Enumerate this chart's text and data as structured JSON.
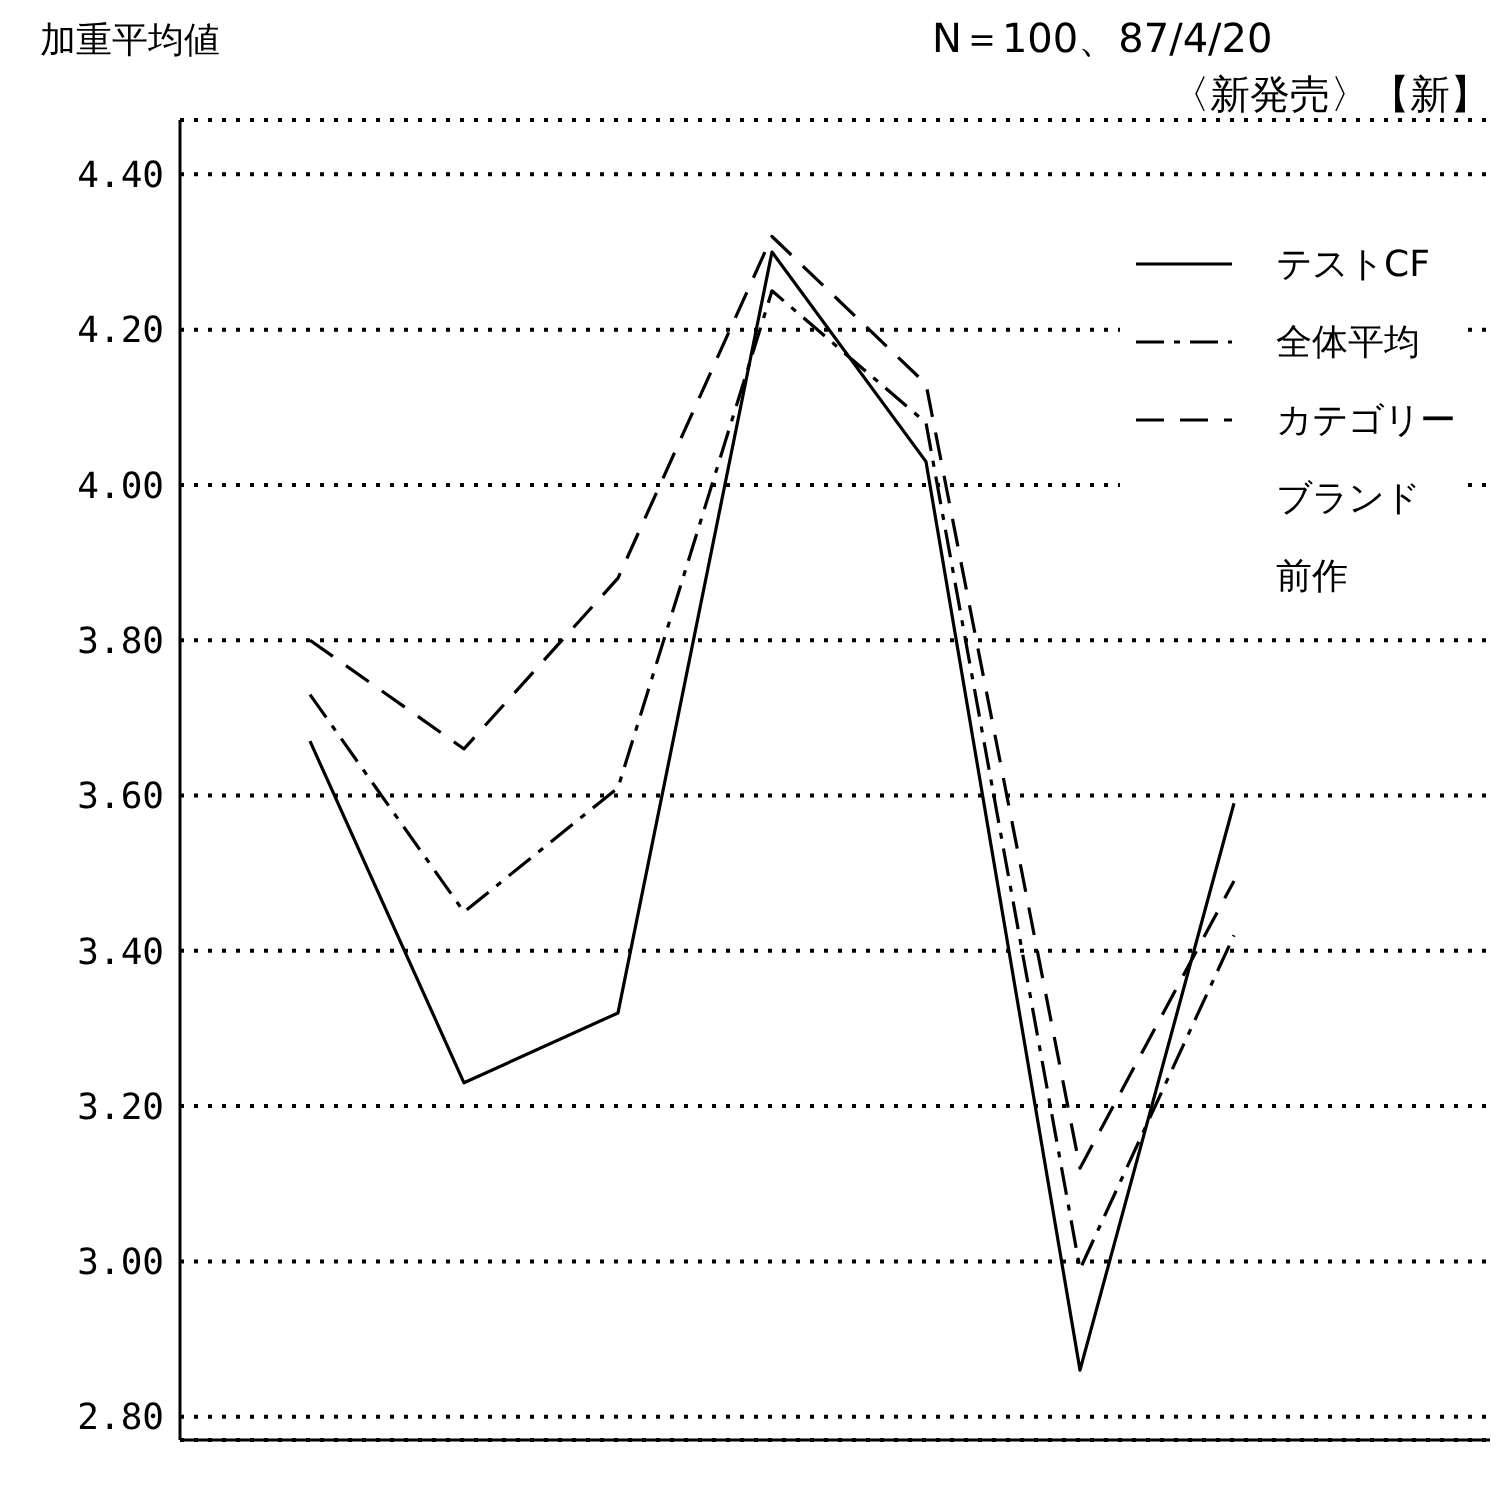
{
  "chart_data": {
    "type": "line",
    "ylabel": "加重平均値",
    "annotations": [
      "N＝100、87/4/20",
      "〈新発売〉【新】",
      "ブランド",
      "前作"
    ],
    "categories": [
      null,
      null,
      null,
      null,
      null,
      null,
      null
    ],
    "series": [
      {
        "name": "テストCF",
        "color": "#000000",
        "line_style": "solid",
        "values": [
          3.67,
          3.23,
          3.32,
          4.3,
          4.03,
          2.86,
          3.59
        ]
      },
      {
        "name": "全体平均",
        "color": "#000000",
        "line_style": "dashdot",
        "values": [
          3.73,
          3.45,
          3.61,
          4.25,
          4.08,
          2.99,
          3.42
        ]
      },
      {
        "name": "カテゴリー",
        "color": "#000000",
        "line_style": "dashed",
        "values": [
          3.8,
          3.66,
          3.88,
          4.32,
          4.13,
          3.12,
          3.49
        ]
      }
    ],
    "ylim": [
      2.77,
      4.47
    ],
    "yticks": [
      {
        "value": 2.8,
        "label": "2.80"
      },
      {
        "value": 3.0,
        "label": "3.00"
      },
      {
        "value": 3.2,
        "label": "3.20"
      },
      {
        "value": 3.4,
        "label": "3.40"
      },
      {
        "value": 3.6,
        "label": "3.60"
      },
      {
        "value": 3.8,
        "label": "3.80"
      },
      {
        "value": 4.0,
        "label": "4.00"
      },
      {
        "value": 4.2,
        "label": "4.20"
      },
      {
        "value": 4.4,
        "label": "4.40"
      }
    ],
    "grid": "y",
    "legend": "top right",
    "marker": "none"
  }
}
